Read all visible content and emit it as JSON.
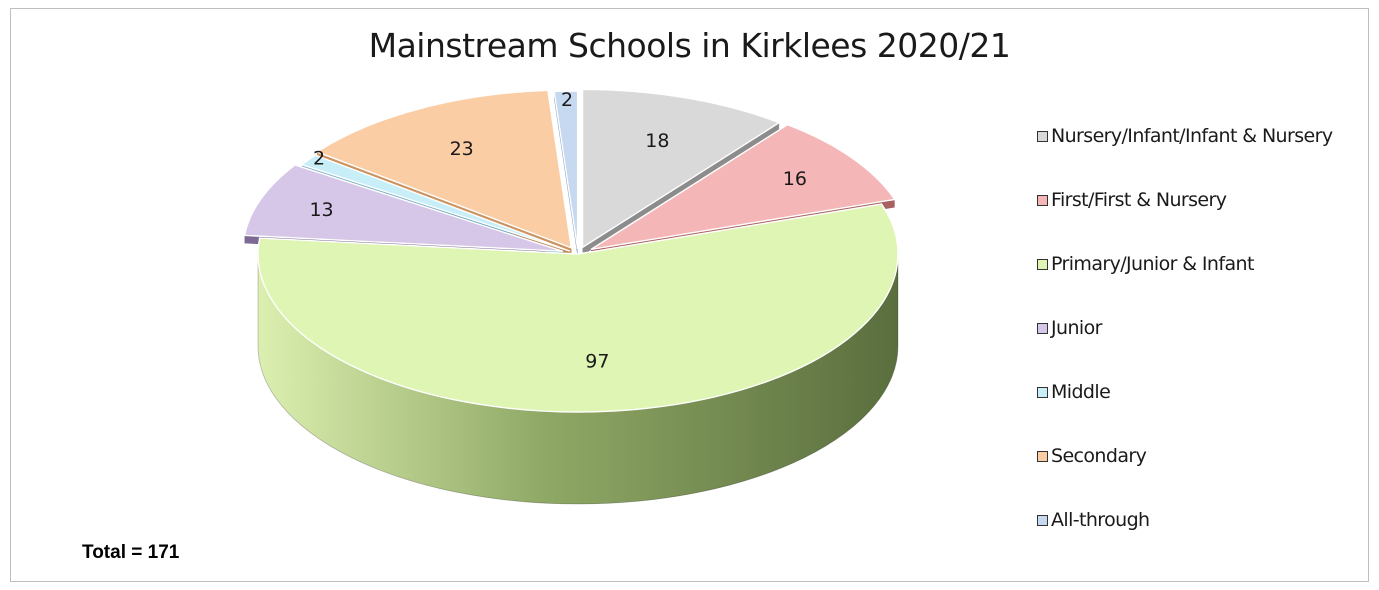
{
  "chart_data": {
    "type": "pie",
    "title": "Mainstream Schools in Kirklees 2020/21",
    "categories": [
      "Nursery/Infant/Infant & Nursery",
      "First/First & Nursery",
      "Primary/Junior & Infant",
      "Junior",
      "Middle",
      "Secondary",
      "All-through"
    ],
    "values": [
      18,
      16,
      97,
      13,
      2,
      23,
      2
    ],
    "data_labels": [
      "18",
      "16",
      "97",
      "13",
      "2",
      "23",
      "2"
    ],
    "colors": [
      "#d9d9d9",
      "#f4b6b6",
      "#dff5b4",
      "#d6c7e8",
      "#c8eef8",
      "#fbcda5",
      "#c6d9f1"
    ],
    "side_colors": [
      "#7f7f7f",
      "#9e4f4f",
      "#8aa067",
      "#6e5a8a",
      "#6aaac0",
      "#c8874e",
      "#6f8fbf"
    ],
    "three_d": true,
    "exploded": true,
    "legend_position": "right"
  },
  "footer": {
    "total_text": "Total = 171"
  }
}
